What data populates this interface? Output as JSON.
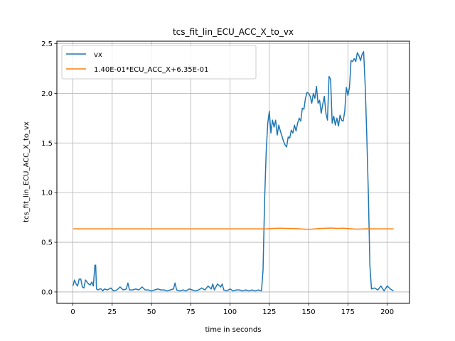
{
  "chart_data": {
    "type": "line",
    "title": "tcs_fit_lin_ECU_ACC_X_to_vx",
    "xlabel": "time in seconds",
    "ylabel": "tcs_fit_lin_ECU_ACC_X_to_vx",
    "xlim": [
      -10.2,
      214.2
    ],
    "ylim": [
      -0.115,
      2.525
    ],
    "xticks": [
      0,
      25,
      50,
      75,
      100,
      125,
      150,
      175,
      200
    ],
    "yticks": [
      0.0,
      0.5,
      1.0,
      1.5,
      2.0,
      2.5
    ],
    "xtick_labels": [
      "0",
      "25",
      "50",
      "75",
      "100",
      "125",
      "150",
      "175",
      "200"
    ],
    "ytick_labels": [
      "0.0",
      "0.5",
      "1.0",
      "1.5",
      "2.0",
      "2.5"
    ],
    "grid": true,
    "legend_position": "upper-left",
    "series": [
      {
        "name": "vx",
        "color": "#1f77b4",
        "x": [
          0,
          1,
          2,
          3,
          4,
          5,
          6,
          7,
          8,
          9,
          10,
          11,
          12,
          13,
          14,
          14.5,
          15,
          16,
          17,
          18,
          19,
          20,
          22,
          24,
          26,
          28,
          30,
          32,
          34,
          35,
          36,
          38,
          40,
          42,
          44,
          46,
          48,
          50,
          52,
          54,
          56,
          58,
          60,
          62,
          64,
          65,
          66,
          68,
          70,
          72,
          74,
          76,
          78,
          80,
          82,
          84,
          86,
          88,
          89,
          90,
          92,
          94,
          95,
          96,
          98,
          100,
          102,
          104,
          106,
          108,
          110,
          112,
          114,
          116,
          118,
          120,
          121,
          122,
          123,
          124,
          125,
          126,
          127,
          128,
          129,
          130,
          131,
          132,
          133,
          134,
          135,
          136,
          137,
          138,
          139,
          140,
          141,
          142,
          143,
          144,
          145,
          146,
          147,
          148,
          149,
          150,
          151,
          152,
          153,
          154,
          155,
          156,
          157,
          158,
          159,
          160,
          161,
          162,
          163,
          164,
          165,
          166,
          167,
          168,
          169,
          170,
          171,
          172,
          173,
          174,
          175,
          176,
          177,
          178,
          179,
          180,
          181,
          182,
          183,
          184,
          185,
          186,
          187,
          188,
          189,
          190,
          192,
          194,
          196,
          198,
          200,
          202,
          204
        ],
        "values": [
          0.06,
          0.12,
          0.08,
          0.06,
          0.13,
          0.13,
          0.05,
          0.04,
          0.12,
          0.1,
          0.08,
          0.07,
          0.1,
          0.06,
          0.27,
          0.27,
          0.03,
          0.02,
          0.03,
          0.03,
          0.01,
          0.03,
          0.02,
          0.04,
          0.01,
          0.02,
          0.05,
          0.02,
          0.03,
          0.09,
          0.02,
          0.02,
          0.03,
          0.02,
          0.05,
          0.02,
          0.02,
          0.01,
          0.02,
          0.03,
          0.02,
          0.02,
          0.01,
          0.02,
          0.03,
          0.09,
          0.02,
          0.01,
          0.02,
          0.01,
          0.03,
          0.02,
          0.01,
          0.02,
          0.04,
          0.02,
          0.06,
          0.03,
          0.08,
          0.02,
          0.08,
          0.05,
          0.08,
          0.02,
          0.01,
          0.03,
          0.01,
          0.02,
          0.02,
          0.01,
          0.02,
          0.01,
          0.02,
          0.01,
          0.02,
          0.01,
          0.22,
          0.93,
          1.41,
          1.7,
          1.82,
          1.6,
          1.73,
          1.66,
          1.73,
          1.58,
          1.68,
          1.62,
          1.57,
          1.52,
          1.48,
          1.46,
          1.56,
          1.55,
          1.63,
          1.6,
          1.68,
          1.62,
          1.7,
          1.75,
          1.72,
          1.85,
          1.84,
          1.95,
          2.01,
          2.0,
          1.97,
          1.9,
          2.0,
          1.95,
          2.07,
          1.9,
          1.93,
          1.8,
          1.89,
          1.97,
          1.8,
          1.73,
          2.17,
          2.14,
          1.7,
          1.77,
          1.68,
          1.75,
          1.67,
          1.78,
          1.73,
          1.72,
          1.82,
          2.06,
          1.98,
          2.06,
          2.33,
          2.32,
          2.35,
          2.32,
          2.41,
          2.38,
          2.33,
          2.39,
          2.42,
          2.08,
          1.58,
          1.0,
          0.26,
          0.03,
          0.04,
          0.02,
          0.06,
          0.01,
          0.06,
          0.03,
          0.01
        ]
      },
      {
        "name": "1.40E-01*ECU_ACC_X+6.35E-01",
        "color": "#ff7f0e",
        "x": [
          0,
          20,
          40,
          60,
          80,
          100,
          110,
          120,
          124,
          128,
          132,
          136,
          140,
          144,
          148,
          152,
          156,
          160,
          164,
          168,
          172,
          176,
          180,
          184,
          188,
          192,
          196,
          200,
          204
        ],
        "values": [
          0.635,
          0.635,
          0.635,
          0.635,
          0.635,
          0.635,
          0.635,
          0.635,
          0.636,
          0.64,
          0.642,
          0.64,
          0.638,
          0.636,
          0.632,
          0.633,
          0.637,
          0.641,
          0.643,
          0.64,
          0.642,
          0.637,
          0.633,
          0.634,
          0.636,
          0.635,
          0.635,
          0.635,
          0.635
        ]
      }
    ]
  }
}
